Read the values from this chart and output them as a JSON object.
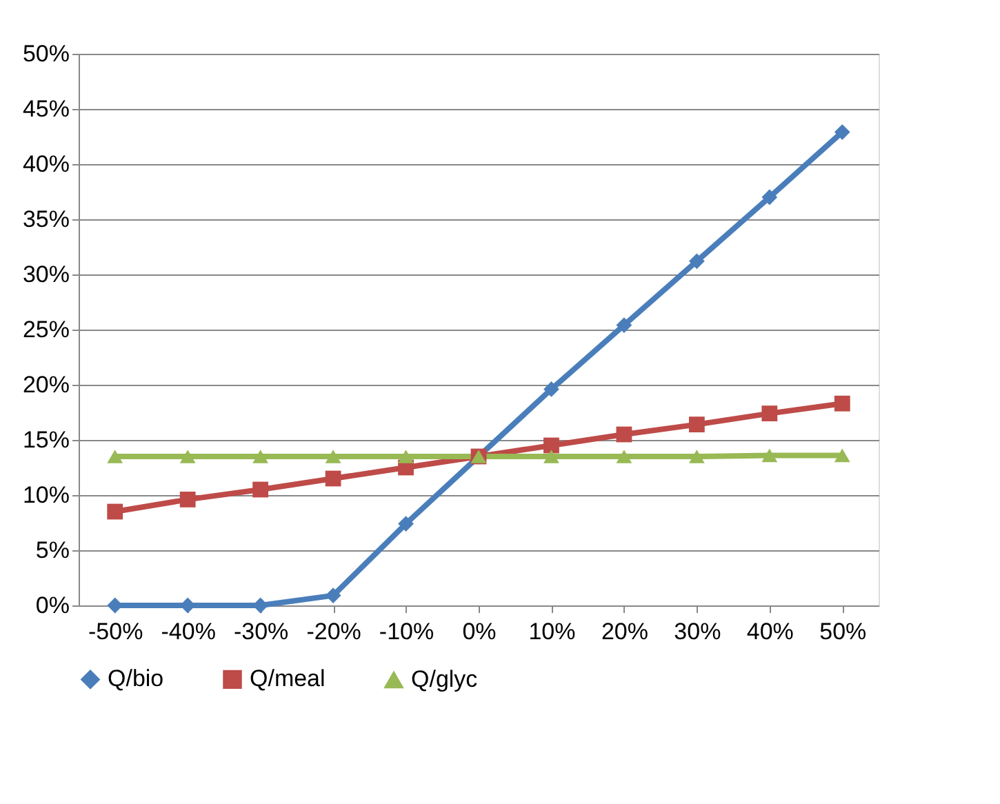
{
  "chart_data": {
    "type": "line",
    "categories": [
      "-50%",
      "-40%",
      "-30%",
      "-20%",
      "-10%",
      "0%",
      "10%",
      "20%",
      "30%",
      "40%",
      "50%"
    ],
    "series": [
      {
        "name": "Q/bio",
        "color": "#4a7ebb",
        "marker": "diamond",
        "values": [
          0,
          0,
          0,
          0.9,
          7.4,
          13.5,
          19.6,
          25.4,
          31.2,
          37,
          42.9
        ]
      },
      {
        "name": "Q/meal",
        "color": "#be4b48",
        "marker": "square",
        "values": [
          8.5,
          9.6,
          10.5,
          11.5,
          12.5,
          13.5,
          14.5,
          15.5,
          16.4,
          17.4,
          18.3
        ]
      },
      {
        "name": "Q/glyc",
        "color": "#98b954",
        "marker": "triangle",
        "values": [
          13.5,
          13.5,
          13.5,
          13.5,
          13.5,
          13.5,
          13.5,
          13.5,
          13.5,
          13.6,
          13.6
        ]
      }
    ],
    "ylim": [
      0,
      50
    ],
    "yticks": [
      {
        "value": 0,
        "label": "0%"
      },
      {
        "value": 5,
        "label": "5%"
      },
      {
        "value": 10,
        "label": "10%"
      },
      {
        "value": 15,
        "label": "15%"
      },
      {
        "value": 20,
        "label": "20%"
      },
      {
        "value": 25,
        "label": "25%"
      },
      {
        "value": 30,
        "label": "30%"
      },
      {
        "value": 35,
        "label": "35%"
      },
      {
        "value": 40,
        "label": "40%"
      },
      {
        "value": 45,
        "label": "45%"
      },
      {
        "value": 50,
        "label": "50%"
      }
    ],
    "grid": "y",
    "legend": "bottom",
    "line_style": "solid"
  }
}
